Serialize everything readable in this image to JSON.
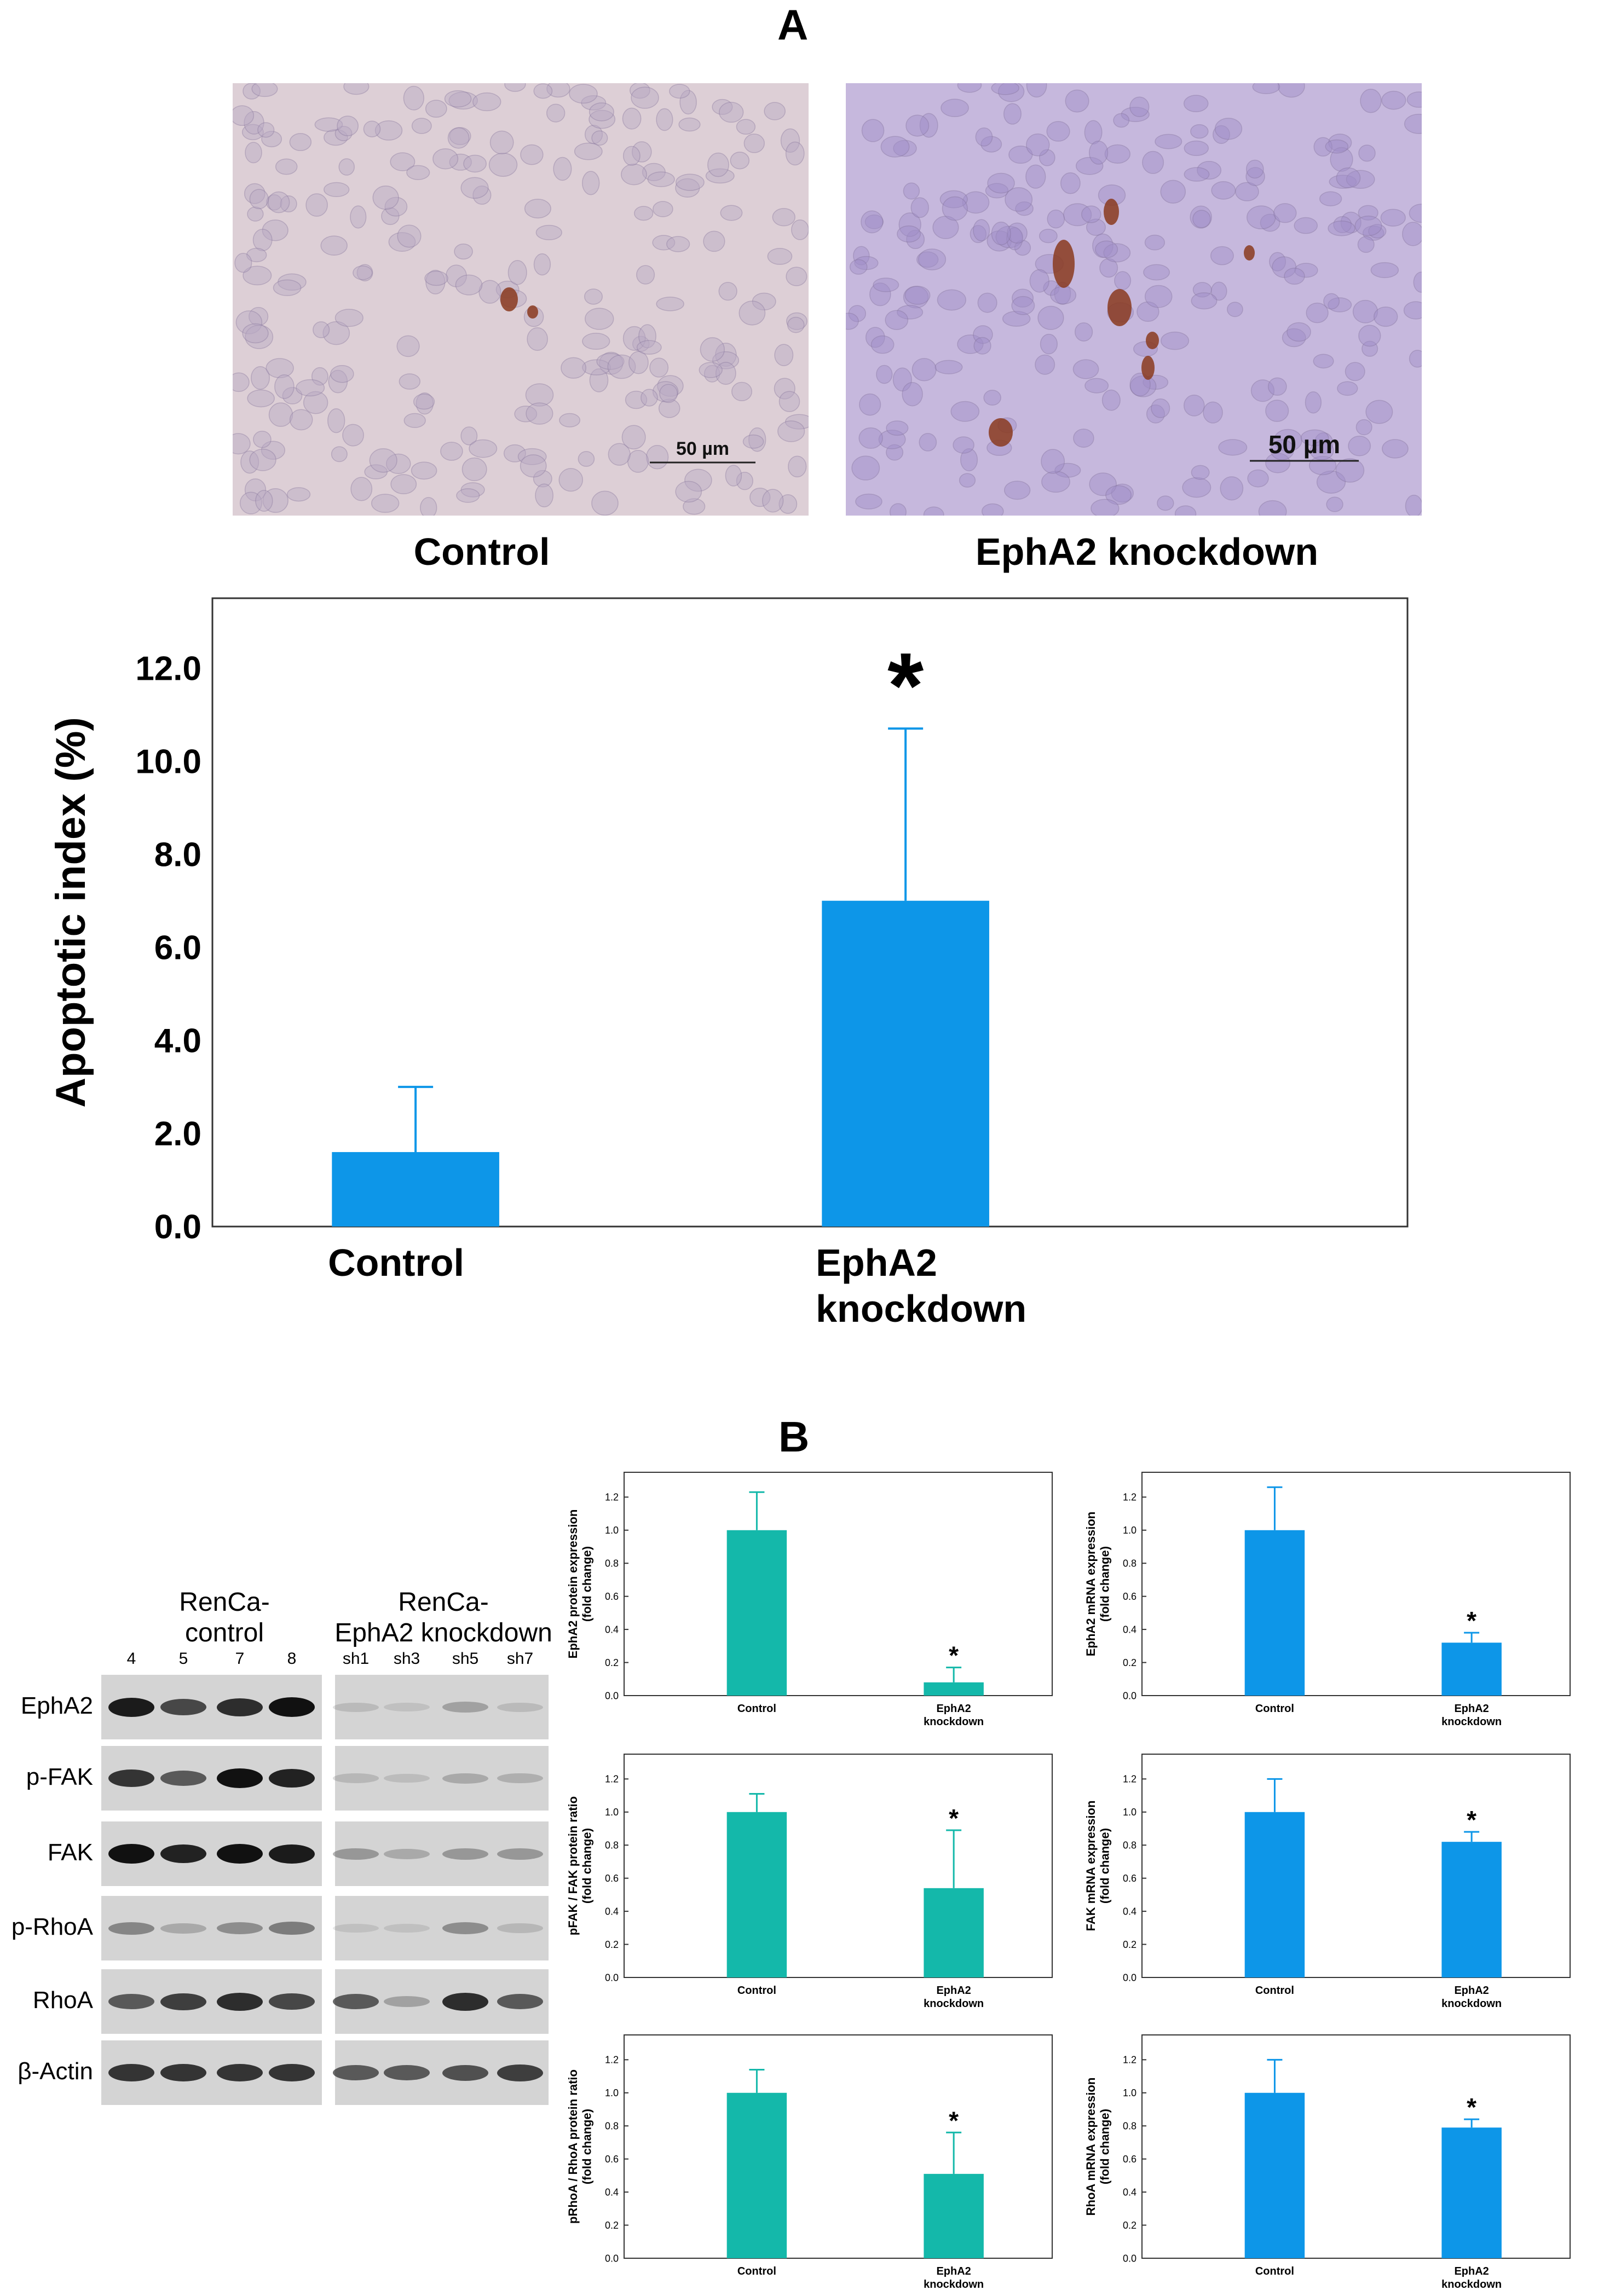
{
  "panels": {
    "a_label": "A",
    "b_label": "B"
  },
  "micrographs": [
    {
      "caption": "Control",
      "scalebar": "50 µm"
    },
    {
      "caption": "EphA2 knockdown",
      "scalebar": "50 µm"
    }
  ],
  "blot": {
    "group1_title_line1": "RenCa-",
    "group1_title_line2": "control",
    "group2_title_line1": "RenCa-",
    "group2_title_line2": "EphA2 knockdown",
    "lanes_group1": [
      "4",
      "5",
      "7",
      "8"
    ],
    "lanes_group2": [
      "sh1",
      "sh3",
      "sh5",
      "sh7"
    ],
    "rows": [
      {
        "label": "EphA2",
        "g1": [
          0.95,
          0.7,
          0.85,
          1.0
        ],
        "g2": [
          0.05,
          0.02,
          0.2,
          0.05
        ]
      },
      {
        "label": "p-FAK",
        "g1": [
          0.8,
          0.6,
          1.0,
          0.9
        ],
        "g2": [
          0.08,
          0.04,
          0.15,
          0.12
        ]
      },
      {
        "label": "FAK",
        "g1": [
          1.0,
          0.9,
          1.0,
          0.95
        ],
        "g2": [
          0.25,
          0.15,
          0.25,
          0.25
        ]
      },
      {
        "label": "p-RhoA",
        "g1": [
          0.35,
          0.15,
          0.3,
          0.4
        ],
        "g2": [
          0.02,
          0.02,
          0.3,
          0.08
        ]
      },
      {
        "label": "RhoA",
        "g1": [
          0.6,
          0.75,
          0.85,
          0.7
        ],
        "g2": [
          0.6,
          0.2,
          0.85,
          0.6
        ]
      },
      {
        "label": "β-Actin",
        "g1": [
          0.8,
          0.8,
          0.8,
          0.8
        ],
        "g2": [
          0.6,
          0.6,
          0.65,
          0.75
        ]
      }
    ]
  },
  "chart_data": [
    {
      "id": "main",
      "type": "bar",
      "categories": [
        "Control",
        "EphA2\nknockdown"
      ],
      "values": [
        1.6,
        7.0
      ],
      "errors": [
        1.4,
        3.7
      ],
      "significance": [
        "",
        "*"
      ],
      "ylabel": "Apoptotic index (%)",
      "yticks": [
        "0.0",
        "2.0",
        "4.0",
        "6.0",
        "8.0",
        "10.0",
        "12.0"
      ],
      "ylim": [
        0,
        13.5
      ],
      "color": "#0d96e8"
    },
    {
      "id": "b1",
      "type": "bar",
      "categories": [
        "Control",
        "EphA2\nknockdown"
      ],
      "values": [
        1.0,
        0.08
      ],
      "errors": [
        0.23,
        0.09
      ],
      "significance": [
        "",
        "*"
      ],
      "ylabel_line1": "EphA2 protein expression",
      "ylabel_line2": "(fold change)",
      "yticks": [
        "0.0",
        "0.2",
        "0.4",
        "0.6",
        "0.8",
        "1.0",
        "1.2"
      ],
      "ylim": [
        0,
        1.35
      ],
      "color": "#14b8aa"
    },
    {
      "id": "b2",
      "type": "bar",
      "categories": [
        "Control",
        "EphA2\nknockdown"
      ],
      "values": [
        1.0,
        0.32
      ],
      "errors": [
        0.26,
        0.06
      ],
      "significance": [
        "",
        "*"
      ],
      "ylabel_line1": "EphA2 mRNA expression",
      "ylabel_line2": "(fold change)",
      "yticks": [
        "0.0",
        "0.2",
        "0.4",
        "0.6",
        "0.8",
        "1.0",
        "1.2"
      ],
      "ylim": [
        0,
        1.35
      ],
      "color": "#0d96e8"
    },
    {
      "id": "b3",
      "type": "bar",
      "categories": [
        "Control",
        "EphA2\nknockdown"
      ],
      "values": [
        1.0,
        0.54
      ],
      "errors": [
        0.11,
        0.35
      ],
      "significance": [
        "",
        "*"
      ],
      "ylabel_line1": "pFAK / FAK protein ratio",
      "ylabel_line2": "(fold change)",
      "yticks": [
        "0.0",
        "0.2",
        "0.4",
        "0.6",
        "0.8",
        "1.0",
        "1.2"
      ],
      "ylim": [
        0,
        1.35
      ],
      "color": "#14b8aa"
    },
    {
      "id": "b4",
      "type": "bar",
      "categories": [
        "Control",
        "EphA2\nknockdown"
      ],
      "values": [
        1.0,
        0.82
      ],
      "errors": [
        0.2,
        0.06
      ],
      "significance": [
        "",
        "*"
      ],
      "ylabel_line1": "FAK mRNA expression",
      "ylabel_line2": "(fold change)",
      "yticks": [
        "0.0",
        "0.2",
        "0.4",
        "0.6",
        "0.8",
        "1.0",
        "1.2"
      ],
      "ylim": [
        0,
        1.35
      ],
      "color": "#0d96e8"
    },
    {
      "id": "b5",
      "type": "bar",
      "categories": [
        "Control",
        "EphA2\nknockdown"
      ],
      "values": [
        1.0,
        0.51
      ],
      "errors": [
        0.14,
        0.25
      ],
      "significance": [
        "",
        "*"
      ],
      "ylabel_line1": "pRhoA / RhoA protein ratio",
      "ylabel_line2": "(fold change)",
      "yticks": [
        "0.0",
        "0.2",
        "0.4",
        "0.6",
        "0.8",
        "1.0",
        "1.2"
      ],
      "ylim": [
        0,
        1.35
      ],
      "color": "#14b8aa"
    },
    {
      "id": "b6",
      "type": "bar",
      "categories": [
        "Control",
        "EphA2\nknockdown"
      ],
      "values": [
        1.0,
        0.79
      ],
      "errors": [
        0.2,
        0.05
      ],
      "significance": [
        "",
        "*"
      ],
      "ylabel_line1": "RhoA mRNA expression",
      "ylabel_line2": "(fold change)",
      "yticks": [
        "0.0",
        "0.2",
        "0.4",
        "0.6",
        "0.8",
        "1.0",
        "1.2"
      ],
      "ylim": [
        0,
        1.35
      ],
      "color": "#0d96e8"
    }
  ]
}
